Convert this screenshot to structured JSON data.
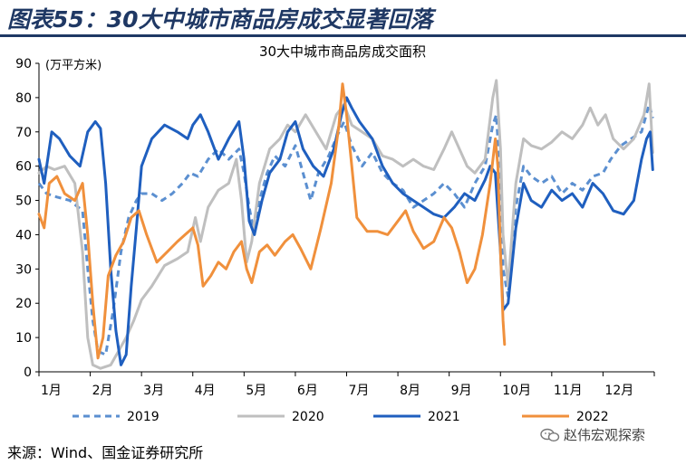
{
  "header": {
    "figure_title": "图表55：30大中城市商品房成交显著回落"
  },
  "footer": {
    "source": "来源：Wind、国金证券研究所",
    "watermark": "赵伟宏观探索",
    "watermark_icon": "wechat-icon"
  },
  "chart_data": {
    "type": "line",
    "title": "30大中城市商品房成交面积",
    "ylabel": "(万平方米)",
    "ylim": [
      0,
      90
    ],
    "yticks": [
      0,
      10,
      20,
      30,
      40,
      50,
      60,
      70,
      80,
      90
    ],
    "xlim": [
      1,
      13
    ],
    "xticks": [
      {
        "value": 1,
        "label": "1月"
      },
      {
        "value": 2,
        "label": "2月"
      },
      {
        "value": 3,
        "label": "3月"
      },
      {
        "value": 4,
        "label": "4月"
      },
      {
        "value": 5,
        "label": "5月"
      },
      {
        "value": 6,
        "label": "6月"
      },
      {
        "value": 7,
        "label": "7月"
      },
      {
        "value": 8,
        "label": "8月"
      },
      {
        "value": 9,
        "label": "9月"
      },
      {
        "value": 10,
        "label": "10月"
      },
      {
        "value": 11,
        "label": "11月"
      },
      {
        "value": 12,
        "label": "12月"
      }
    ],
    "grid": false,
    "legend_position": "bottom",
    "series": [
      {
        "name": "2019",
        "color": "#5b8fd0",
        "style": "dashed",
        "points": [
          [
            1.0,
            55
          ],
          [
            1.15,
            52
          ],
          [
            1.35,
            51
          ],
          [
            1.6,
            50
          ],
          [
            1.85,
            47
          ],
          [
            1.95,
            30
          ],
          [
            2.05,
            15
          ],
          [
            2.15,
            6
          ],
          [
            2.3,
            5
          ],
          [
            2.45,
            18
          ],
          [
            2.6,
            35
          ],
          [
            2.75,
            45
          ],
          [
            2.9,
            50
          ],
          [
            3.0,
            52
          ],
          [
            3.2,
            52
          ],
          [
            3.4,
            50
          ],
          [
            3.6,
            52
          ],
          [
            3.8,
            55
          ],
          [
            3.95,
            58
          ],
          [
            4.1,
            57
          ],
          [
            4.3,
            62
          ],
          [
            4.5,
            65
          ],
          [
            4.7,
            62
          ],
          [
            4.9,
            65
          ],
          [
            5.0,
            58
          ],
          [
            5.1,
            48
          ],
          [
            5.2,
            40
          ],
          [
            5.3,
            50
          ],
          [
            5.45,
            58
          ],
          [
            5.6,
            63
          ],
          [
            5.8,
            60
          ],
          [
            6.0,
            66
          ],
          [
            6.15,
            58
          ],
          [
            6.3,
            50
          ],
          [
            6.45,
            58
          ],
          [
            6.65,
            63
          ],
          [
            6.85,
            70
          ],
          [
            6.95,
            73
          ],
          [
            7.1,
            66
          ],
          [
            7.3,
            60
          ],
          [
            7.5,
            64
          ],
          [
            7.7,
            58
          ],
          [
            7.9,
            55
          ],
          [
            8.1,
            53
          ],
          [
            8.3,
            48
          ],
          [
            8.5,
            50
          ],
          [
            8.7,
            52
          ],
          [
            8.9,
            55
          ],
          [
            9.1,
            52
          ],
          [
            9.3,
            48
          ],
          [
            9.5,
            55
          ],
          [
            9.7,
            60
          ],
          [
            9.85,
            72
          ],
          [
            9.92,
            75
          ],
          [
            10.0,
            55
          ],
          [
            10.05,
            30
          ],
          [
            10.15,
            22
          ],
          [
            10.3,
            48
          ],
          [
            10.45,
            60
          ],
          [
            10.6,
            57
          ],
          [
            10.8,
            55
          ],
          [
            11.0,
            57
          ],
          [
            11.2,
            52
          ],
          [
            11.4,
            55
          ],
          [
            11.6,
            53
          ],
          [
            11.8,
            57
          ],
          [
            12.0,
            58
          ],
          [
            12.15,
            62
          ],
          [
            12.35,
            66
          ],
          [
            12.55,
            68
          ],
          [
            12.75,
            70
          ],
          [
            12.9,
            78
          ],
          [
            12.97,
            74
          ]
        ]
      },
      {
        "name": "2020",
        "color": "#bfbfbf",
        "style": "solid",
        "points": [
          [
            1.0,
            58
          ],
          [
            1.15,
            60
          ],
          [
            1.3,
            59
          ],
          [
            1.5,
            60
          ],
          [
            1.7,
            55
          ],
          [
            1.85,
            35
          ],
          [
            1.95,
            10
          ],
          [
            2.05,
            2
          ],
          [
            2.2,
            1
          ],
          [
            2.4,
            2
          ],
          [
            2.55,
            6
          ],
          [
            2.7,
            10
          ],
          [
            2.85,
            15
          ],
          [
            3.0,
            21
          ],
          [
            3.2,
            25
          ],
          [
            3.45,
            31
          ],
          [
            3.7,
            33
          ],
          [
            3.9,
            35
          ],
          [
            4.05,
            45
          ],
          [
            4.15,
            38
          ],
          [
            4.3,
            48
          ],
          [
            4.5,
            53
          ],
          [
            4.7,
            55
          ],
          [
            4.85,
            62
          ],
          [
            4.95,
            50
          ],
          [
            5.05,
            32
          ],
          [
            5.15,
            38
          ],
          [
            5.3,
            55
          ],
          [
            5.5,
            65
          ],
          [
            5.7,
            68
          ],
          [
            5.85,
            72
          ],
          [
            6.0,
            70
          ],
          [
            6.2,
            75
          ],
          [
            6.4,
            70
          ],
          [
            6.6,
            65
          ],
          [
            6.8,
            75
          ],
          [
            6.95,
            78
          ],
          [
            7.1,
            72
          ],
          [
            7.3,
            70
          ],
          [
            7.5,
            68
          ],
          [
            7.7,
            63
          ],
          [
            7.9,
            62
          ],
          [
            8.1,
            60
          ],
          [
            8.3,
            62
          ],
          [
            8.5,
            60
          ],
          [
            8.7,
            59
          ],
          [
            8.9,
            65
          ],
          [
            9.05,
            70
          ],
          [
            9.2,
            65
          ],
          [
            9.35,
            60
          ],
          [
            9.5,
            58
          ],
          [
            9.7,
            62
          ],
          [
            9.85,
            80
          ],
          [
            9.92,
            85
          ],
          [
            10.0,
            65
          ],
          [
            10.05,
            40
          ],
          [
            10.15,
            25
          ],
          [
            10.3,
            55
          ],
          [
            10.45,
            68
          ],
          [
            10.6,
            66
          ],
          [
            10.8,
            65
          ],
          [
            11.0,
            67
          ],
          [
            11.2,
            70
          ],
          [
            11.4,
            68
          ],
          [
            11.6,
            72
          ],
          [
            11.75,
            77
          ],
          [
            11.9,
            72
          ],
          [
            12.05,
            75
          ],
          [
            12.2,
            68
          ],
          [
            12.4,
            65
          ],
          [
            12.6,
            68
          ],
          [
            12.8,
            75
          ],
          [
            12.9,
            84
          ],
          [
            12.97,
            64
          ]
        ]
      },
      {
        "name": "2021",
        "color": "#1f5fbf",
        "style": "solid",
        "points": [
          [
            1.0,
            62
          ],
          [
            1.1,
            55
          ],
          [
            1.25,
            70
          ],
          [
            1.4,
            68
          ],
          [
            1.6,
            63
          ],
          [
            1.8,
            60
          ],
          [
            1.95,
            70
          ],
          [
            2.1,
            73
          ],
          [
            2.2,
            71
          ],
          [
            2.3,
            55
          ],
          [
            2.4,
            30
          ],
          [
            2.5,
            12
          ],
          [
            2.6,
            2
          ],
          [
            2.7,
            5
          ],
          [
            2.8,
            25
          ],
          [
            2.9,
            42
          ],
          [
            3.0,
            60
          ],
          [
            3.2,
            68
          ],
          [
            3.45,
            72
          ],
          [
            3.7,
            70
          ],
          [
            3.9,
            68
          ],
          [
            4.0,
            72
          ],
          [
            4.15,
            75
          ],
          [
            4.3,
            70
          ],
          [
            4.5,
            62
          ],
          [
            4.7,
            68
          ],
          [
            4.9,
            73
          ],
          [
            5.0,
            62
          ],
          [
            5.1,
            44
          ],
          [
            5.2,
            40
          ],
          [
            5.35,
            50
          ],
          [
            5.5,
            58
          ],
          [
            5.7,
            62
          ],
          [
            5.85,
            70
          ],
          [
            6.0,
            73
          ],
          [
            6.15,
            65
          ],
          [
            6.35,
            60
          ],
          [
            6.55,
            57
          ],
          [
            6.75,
            65
          ],
          [
            6.9,
            75
          ],
          [
            7.0,
            80
          ],
          [
            7.1,
            77
          ],
          [
            7.25,
            73
          ],
          [
            7.5,
            68
          ],
          [
            7.7,
            60
          ],
          [
            7.9,
            55
          ],
          [
            8.1,
            52
          ],
          [
            8.3,
            50
          ],
          [
            8.5,
            48
          ],
          [
            8.7,
            46
          ],
          [
            8.9,
            45
          ],
          [
            9.1,
            48
          ],
          [
            9.3,
            52
          ],
          [
            9.5,
            50
          ],
          [
            9.7,
            56
          ],
          [
            9.8,
            60
          ],
          [
            9.9,
            58
          ],
          [
            10.0,
            35
          ],
          [
            10.05,
            18
          ],
          [
            10.15,
            20
          ],
          [
            10.3,
            42
          ],
          [
            10.45,
            55
          ],
          [
            10.6,
            50
          ],
          [
            10.8,
            48
          ],
          [
            11.0,
            53
          ],
          [
            11.2,
            50
          ],
          [
            11.4,
            52
          ],
          [
            11.6,
            48
          ],
          [
            11.8,
            55
          ],
          [
            12.0,
            52
          ],
          [
            12.2,
            47
          ],
          [
            12.4,
            46
          ],
          [
            12.6,
            50
          ],
          [
            12.75,
            62
          ],
          [
            12.85,
            68
          ],
          [
            12.92,
            70
          ],
          [
            12.97,
            59
          ]
        ]
      },
      {
        "name": "2022",
        "color": "#f0903c",
        "style": "solid",
        "points": [
          [
            1.0,
            46
          ],
          [
            1.1,
            42
          ],
          [
            1.2,
            55
          ],
          [
            1.35,
            57
          ],
          [
            1.5,
            52
          ],
          [
            1.7,
            50
          ],
          [
            1.85,
            55
          ],
          [
            1.95,
            40
          ],
          [
            2.05,
            20
          ],
          [
            2.15,
            4
          ],
          [
            2.25,
            10
          ],
          [
            2.35,
            28
          ],
          [
            2.5,
            34
          ],
          [
            2.65,
            38
          ],
          [
            2.8,
            45
          ],
          [
            2.95,
            47
          ],
          [
            3.1,
            40
          ],
          [
            3.3,
            32
          ],
          [
            3.5,
            35
          ],
          [
            3.7,
            38
          ],
          [
            3.85,
            40
          ],
          [
            4.0,
            42
          ],
          [
            4.1,
            37
          ],
          [
            4.2,
            25
          ],
          [
            4.35,
            28
          ],
          [
            4.5,
            32
          ],
          [
            4.65,
            30
          ],
          [
            4.8,
            35
          ],
          [
            4.95,
            38
          ],
          [
            5.05,
            30
          ],
          [
            5.15,
            26
          ],
          [
            5.3,
            35
          ],
          [
            5.45,
            37
          ],
          [
            5.6,
            34
          ],
          [
            5.8,
            38
          ],
          [
            5.95,
            40
          ],
          [
            6.1,
            36
          ],
          [
            6.3,
            30
          ],
          [
            6.5,
            42
          ],
          [
            6.7,
            55
          ],
          [
            6.85,
            72
          ],
          [
            6.92,
            84
          ],
          [
            7.0,
            75
          ],
          [
            7.1,
            60
          ],
          [
            7.2,
            45
          ],
          [
            7.4,
            41
          ],
          [
            7.6,
            41
          ],
          [
            7.8,
            40
          ],
          [
            8.0,
            44
          ],
          [
            8.15,
            47
          ],
          [
            8.3,
            41
          ],
          [
            8.5,
            36
          ],
          [
            8.7,
            38
          ],
          [
            8.9,
            45
          ],
          [
            9.05,
            42
          ],
          [
            9.2,
            35
          ],
          [
            9.35,
            26
          ],
          [
            9.5,
            30
          ],
          [
            9.65,
            40
          ],
          [
            9.8,
            55
          ],
          [
            9.9,
            68
          ],
          [
            9.95,
            60
          ],
          [
            10.0,
            35
          ],
          [
            10.05,
            15
          ],
          [
            10.08,
            8
          ]
        ]
      }
    ]
  }
}
